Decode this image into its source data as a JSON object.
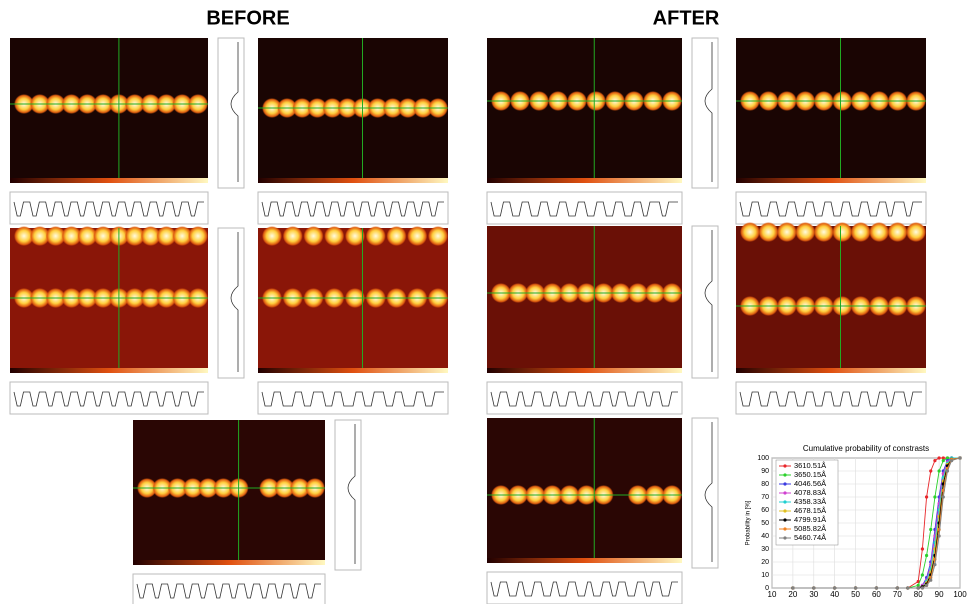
{
  "header": {
    "before": "BEFORE",
    "after": "AFTER"
  },
  "chart_data": {
    "type": "line",
    "title": "Cumulative probability of constrasts",
    "y_label": "Probability in [%]",
    "x": [
      20,
      30,
      40,
      50,
      60,
      70,
      75,
      80,
      82,
      84,
      86,
      88,
      90,
      92,
      94,
      96,
      100
    ],
    "xlim": [
      10,
      100
    ],
    "xticks": [
      10,
      20,
      30,
      40,
      50,
      60,
      70,
      80,
      90,
      100
    ],
    "ylim": [
      0,
      100
    ],
    "yticks": [
      0,
      10,
      20,
      30,
      40,
      50,
      60,
      70,
      80,
      90,
      100
    ],
    "grid": true,
    "series": [
      {
        "name": "3610.51Å",
        "color": "#e8262a",
        "values": [
          0,
          0,
          0,
          0,
          0,
          0,
          0,
          5,
          30,
          70,
          90,
          98,
          100,
          100,
          100,
          100,
          100
        ]
      },
      {
        "name": "3650.15Å",
        "color": "#2bd12b",
        "values": [
          0,
          0,
          0,
          0,
          0,
          0,
          0,
          2,
          10,
          25,
          45,
          70,
          90,
          98,
          100,
          100,
          100
        ]
      },
      {
        "name": "4046.56Å",
        "color": "#3a3ae0",
        "values": [
          0,
          0,
          0,
          0,
          0,
          0,
          0,
          0,
          2,
          8,
          20,
          45,
          70,
          90,
          98,
          100,
          100
        ]
      },
      {
        "name": "4078.83Å",
        "color": "#d040d0",
        "values": [
          0,
          0,
          0,
          0,
          0,
          0,
          0,
          0,
          2,
          6,
          18,
          40,
          65,
          88,
          97,
          100,
          100
        ]
      },
      {
        "name": "4358.33Å",
        "color": "#20d0d0",
        "values": [
          0,
          0,
          0,
          0,
          0,
          0,
          0,
          0,
          1,
          5,
          15,
          35,
          60,
          85,
          96,
          100,
          100
        ]
      },
      {
        "name": "4678.15Å",
        "color": "#e0c020",
        "values": [
          0,
          0,
          0,
          0,
          0,
          0,
          0,
          0,
          1,
          4,
          12,
          30,
          55,
          82,
          95,
          99,
          100
        ]
      },
      {
        "name": "4799.91Å",
        "color": "#000000",
        "values": [
          0,
          0,
          0,
          0,
          0,
          0,
          0,
          0,
          1,
          3,
          10,
          25,
          50,
          80,
          94,
          99,
          100
        ]
      },
      {
        "name": "5085.82Å",
        "color": "#f08020",
        "values": [
          0,
          0,
          0,
          0,
          0,
          0,
          0,
          0,
          0,
          2,
          8,
          22,
          45,
          75,
          92,
          99,
          100
        ]
      },
      {
        "name": "5460.74Å",
        "color": "#808080",
        "values": [
          0,
          0,
          0,
          0,
          0,
          0,
          0,
          0,
          0,
          2,
          6,
          18,
          40,
          70,
          90,
          98,
          100
        ]
      }
    ]
  }
}
